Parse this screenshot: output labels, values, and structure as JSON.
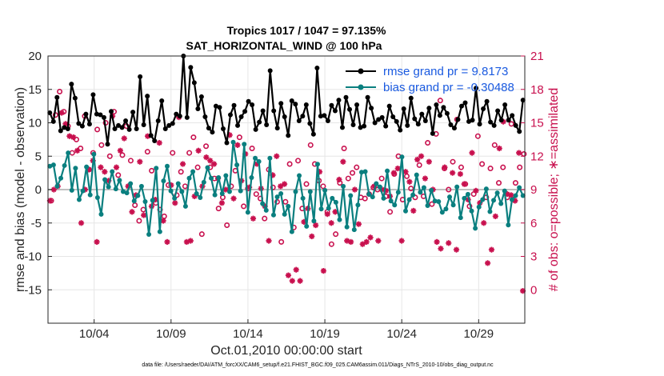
{
  "chart_data": {
    "type": "line",
    "title_line1": "Tropics 1017 / 1047 = 97.135%",
    "title_line2": "SAT_HORIZONTAL_WIND @ 100 hPa",
    "xlabel": "Oct.01,2010 00:00:00 start",
    "ylabel_left": "rmse and bias (model - observation)",
    "ylabel_right": "# of obs: o=possible; ∗=assimilated",
    "footer": "data file: /Users/raeder/DAI/ATM_forcXX/CAM6_setup/f.e21.FHIST_BGC.f09_025.CAM6assim.011/Diags_NTrS_2010-10/obs_diag_output.nc",
    "x_ticks": [
      {
        "label": "10/04",
        "day": 4
      },
      {
        "label": "10/09",
        "day": 9
      },
      {
        "label": "10/14",
        "day": 14
      },
      {
        "label": "10/19",
        "day": 19
      },
      {
        "label": "10/24",
        "day": 24
      },
      {
        "label": "10/29",
        "day": 29
      }
    ],
    "x_range": [
      1.0,
      32.0
    ],
    "ylim_left": [
      -20,
      20
    ],
    "yticks_left": [
      "20",
      "15",
      "10",
      "5",
      "0",
      "-5",
      "-10",
      "-15"
    ],
    "ylim_right": [
      -3,
      21
    ],
    "yticks_right": [
      "21",
      "18",
      "15",
      "12",
      "9",
      "6",
      "3",
      "0"
    ],
    "colors": {
      "rmse": "#000000",
      "bias": "#0a7f7f",
      "obs": "#c8104e",
      "zero_line": "#c0c0c0",
      "legend_text": "#1a5ae0"
    },
    "series": [
      {
        "name": "rmse grand pr = 9.8173",
        "axis": "left",
        "values": [
          11.5,
          10.2,
          13.8,
          8.8,
          9.3,
          9.1,
          15.8,
          13.7,
          9.9,
          9.5,
          11.3,
          9.8,
          14.2,
          11.3,
          11.2,
          10.8,
          6.8,
          11.7,
          9.1,
          9.6,
          9.3,
          10.3,
          9.0,
          11.6,
          9.1,
          16.9,
          9.7,
          14.0,
          8.1,
          7.3,
          10.3,
          13.3,
          9.1,
          9.6,
          9.9,
          11.3,
          11.0,
          20.0,
          10.8,
          18.3,
          16.0,
          12.1,
          13.9,
          10.9,
          9.2,
          8.6,
          12.5,
          12.3,
          9.1,
          7.0,
          11.2,
          12.6,
          9.6,
          10.9,
          11.7,
          13.2,
          12.7,
          9.0,
          10.1,
          11.8,
          9.7,
          17.8,
          11.8,
          9.2,
          12.9,
          10.9,
          8.1,
          13.3,
          12.8,
          10.3,
          11.0,
          12.7,
          9.9,
          8.3,
          18.2,
          11.0,
          11.1,
          10.3,
          12.6,
          11.8,
          13.4,
          9.3,
          13.8,
          12.0,
          9.7,
          12.7,
          9.3,
          9.5,
          13.8,
          12.2,
          10.0,
          10.5,
          10.8,
          9.5,
          12.5,
          10.9,
          10.2,
          8.9,
          12.1,
          9.6,
          13.7,
          10.6,
          9.8,
          11.3,
          10.3,
          12.2,
          8.4,
          12.7,
          11.1,
          12.3,
          11.4,
          9.7,
          9.2,
          10.5,
          12.5,
          13.0,
          10.2,
          10.4,
          15.2,
          9.8,
          12.1,
          13.2,
          10.1,
          9.6,
          11.8,
          10.4,
          12.7,
          10.4,
          11.1,
          9.6,
          8.7,
          13.4
        ],
        "values_note": "rmse per analysis step; remaining steps follow the same series"
      },
      {
        "name": "bias grand pr = -0.30488",
        "axis": "left",
        "values": [
          3.5,
          3.7,
          0.5,
          1.7,
          3.6,
          5.5,
          -0.1,
          3.2,
          -1.5,
          -0.2,
          3.4,
          -0.8,
          5.3,
          -1.2,
          -3.7,
          1.5,
          0.4,
          2.7,
          0.1,
          1.4,
          -0.3,
          -0.5,
          0.9,
          -1.7,
          -0.9,
          0.5,
          -1.8,
          -6.7,
          -1.6,
          3.2,
          -6.3,
          1.3,
          3.5,
          -0.2,
          -1.3,
          0.9,
          -0.3,
          -2.5,
          1.7,
          2.7,
          -0.6,
          -1.2,
          1.1,
          3.3,
          1.7,
          -0.8,
          1.8,
          -0.6,
          2.1,
          -0.3,
          7.1,
          3.7,
          -0.2,
          6.8,
          -3.4,
          1.8,
          4.7,
          4.2,
          -2.1,
          -3.1,
          4.7,
          -3.8,
          -1.1,
          -0.6,
          -3.7,
          -2.5,
          -6.3,
          -0.3,
          2.1,
          -1.3,
          -5.5,
          -0.3,
          -4.7,
          3.8,
          -2.9,
          -0.1,
          -2.8,
          -1.3,
          -1.9,
          -4.5,
          0.5,
          -5.6,
          -0.9,
          -6.0,
          -2.3,
          2.6,
          2.7,
          -0.7,
          -1.1,
          0.9,
          0.4,
          -1.3,
          2.8,
          -1.7,
          -2.3,
          -0.4,
          4.9,
          -3.2,
          -1.5,
          -0.8,
          2.2,
          -0.4,
          0.3,
          -2.4,
          -0.1,
          -1.7,
          -1.8,
          -3.4,
          -2.9,
          -1.1,
          -2.3,
          0.4,
          -4.2,
          -1.3,
          -0.7,
          -3.2,
          -5.8,
          -2.6,
          -1.5,
          0.1,
          -3.3,
          -1.6,
          -0.5,
          -2.1,
          -0.2,
          -5.3,
          -1.5,
          -0.9,
          0.3,
          -0.9
        ],
        "values_note": "bias per analysis step"
      },
      {
        "name": "# possible obs (o)",
        "axis": "right",
        "values": [
          8.0,
          15.7,
          17.8,
          16.0,
          14.7,
          12.3,
          13.5,
          12.7,
          15.6,
          10.8,
          12.3,
          14.4,
          13.0,
          15.0,
          12.0,
          16.0,
          10.3,
          12.1,
          14.7,
          11.6,
          7.6,
          6.2,
          7.2,
          12.4,
          10.7,
          7.8,
          7.2,
          6.6,
          9.4,
          12.3,
          8.5,
          10.6,
          9.3,
          12.3,
          13.7,
          11.0,
          5.0,
          12.9,
          11.0,
          10.0,
          7.3,
          8.3,
          5.8,
          9.3,
          10.7,
          13.7,
          7.5,
          9.1,
          12.7,
          8.6,
          8.2,
          6.4,
          10.8,
          9.2,
          7.9,
          4.3,
          7.9,
          11.3,
          5.6,
          11.6,
          7.3,
          9.5,
          13.0,
          11.3,
          9.8,
          9.3,
          7.0,
          4.1,
          5.0,
          9.6,
          12.7,
          10.0,
          10.5,
          11.0,
          8.3,
          8.2,
          8.6,
          9.2,
          9.0,
          10.0,
          8.4,
          7.0,
          10.4,
          12.0,
          8.1,
          10.2,
          9.1,
          8.3,
          11.2,
          8.4,
          13.2,
          7.7,
          14.0,
          17.0,
          10.9,
          9.0,
          11.5,
          15.3,
          11.0,
          9.5,
          7.5,
          8.6,
          13.8,
          11.3,
          8.3,
          10.9,
          13.0,
          9.6,
          11.0,
          8.3,
          14.9,
          9.6,
          11.0,
          12.2
        ],
        "values_note": "possible observations count"
      },
      {
        "name": "# assimilated obs (*)",
        "axis": "right",
        "values": [
          8.0,
          9.0,
          9.3,
          15.9,
          14.9,
          13.8,
          13.7,
          12.5,
          6.0,
          9.0,
          10.8,
          11.6,
          4.3,
          11.0,
          10.6,
          9.8,
          15.6,
          11.0,
          12.5,
          13.6,
          9.3,
          7.0,
          8.5,
          11.5,
          6.7,
          13.8,
          7.5,
          8.1,
          13.2,
          6.2,
          4.3,
          9.4,
          7.8,
          15.5,
          11.3,
          4.3,
          4.4,
          8.4,
          12.5,
          9.3,
          11.9,
          11.6,
          11.3,
          10.0,
          7.8,
          9.0,
          13.9,
          8.2,
          13.0,
          9.8,
          12.2,
          9.2,
          6.4,
          11.3,
          9.1,
          7.5,
          4.4,
          10.3,
          12.0,
          9.3,
          9.5,
          1.3,
          0.8,
          1.8,
          0.8,
          6.1,
          7.3,
          4.8,
          5.8,
          10.6,
          1.7,
          6.8,
          6.0,
          7.0,
          9.9,
          11.5,
          4.4,
          4.3,
          9.0,
          5.9,
          4.1,
          4.3,
          4.7,
          9.3,
          4.4,
          9.0,
          8.9,
          8.4,
          10.5,
          10.9,
          4.4,
          10.6,
          9.7,
          7.1,
          11.7,
          12.0,
          10.0,
          11.5,
          9.0,
          4.3,
          3.7,
          11.0,
          4.2,
          10.5,
          3.6,
          10.4,
          9.5,
          8.1,
          12.3,
          8.9,
          7.8,
          6.0,
          2.4,
          3.6,
          6.6,
          12.7,
          15.1,
          8.6,
          8.5,
          8.0,
          12.3,
          -0.1
        ],
        "values_note": "assimilated observations count"
      }
    ],
    "legend": [
      "rmse grand pr = 9.8173",
      "bias grand pr = -0.30488"
    ],
    "legend_position": "top-right",
    "grid": true
  }
}
